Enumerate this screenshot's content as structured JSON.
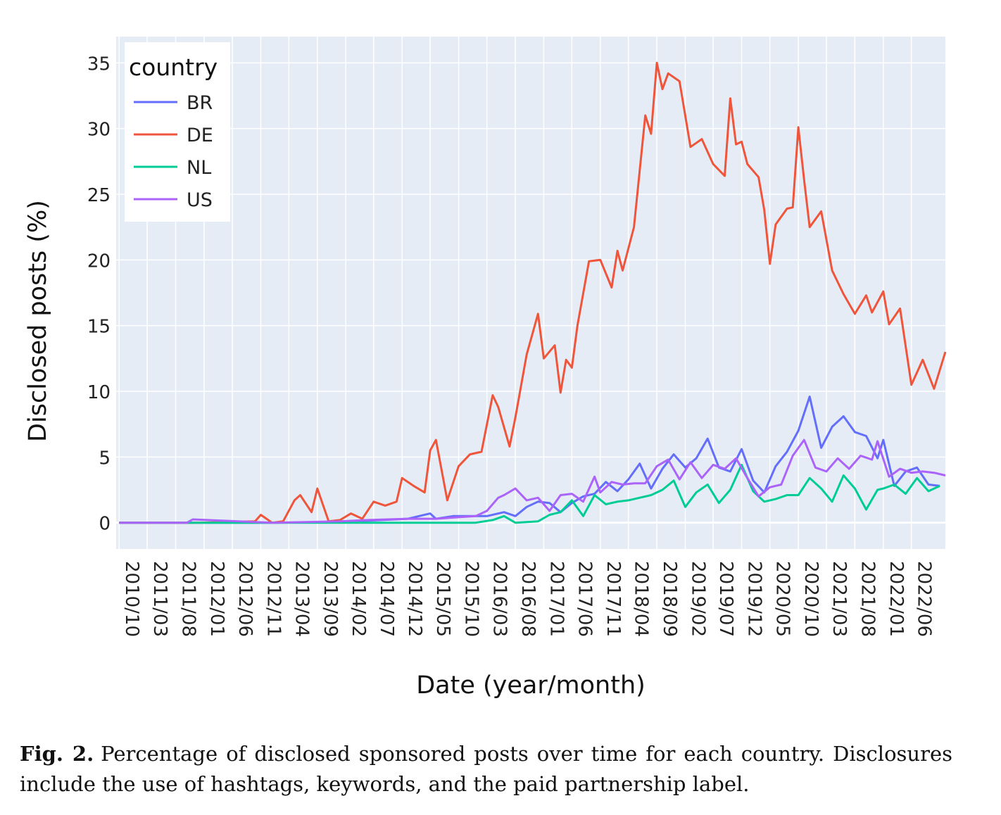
{
  "chart_data": {
    "type": "line",
    "xlabel": "Date (year/month)",
    "ylabel": "Disclosed posts (%)",
    "ylim": [
      -2,
      37
    ],
    "yticks": [
      0,
      5,
      10,
      15,
      20,
      25,
      30,
      35
    ],
    "xlim": [
      "2010-09-15",
      "2022-12-01"
    ],
    "xticks": [
      "2010/10",
      "2011/03",
      "2011/08",
      "2012/01",
      "2012/06",
      "2012/11",
      "2013/04",
      "2013/09",
      "2014/02",
      "2014/07",
      "2014/12",
      "2015/05",
      "2015/10",
      "2016/03",
      "2016/08",
      "2017/01",
      "2017/06",
      "2017/11",
      "2018/04",
      "2018/09",
      "2019/02",
      "2019/07",
      "2019/12",
      "2020/05",
      "2020/10",
      "2021/03",
      "2021/08",
      "2022/01",
      "2022/06"
    ],
    "grid": true,
    "legend": {
      "title": "country",
      "position": "top-left"
    },
    "colors": {
      "plot_bg": "#e5ecf6",
      "grid": "#ffffff",
      "BR": "#636efa",
      "DE": "#ef553b",
      "NL": "#00cc96",
      "US": "#ab63fa"
    },
    "series": [
      {
        "name": "BR",
        "x": [
          "2010-10",
          "2012-01",
          "2013-01",
          "2014-01",
          "2015-01",
          "2015-05",
          "2015-06",
          "2015-09",
          "2016-01",
          "2016-03",
          "2016-06",
          "2016-08",
          "2016-10",
          "2016-12",
          "2017-02",
          "2017-04",
          "2017-06",
          "2017-08",
          "2017-10",
          "2017-12",
          "2018-02",
          "2018-04",
          "2018-06",
          "2018-08",
          "2018-10",
          "2018-12",
          "2019-02",
          "2019-04",
          "2019-06",
          "2019-08",
          "2019-10",
          "2019-12",
          "2020-02",
          "2020-04",
          "2020-06",
          "2020-08",
          "2020-10",
          "2020-12",
          "2021-02",
          "2021-04",
          "2021-06",
          "2021-08",
          "2021-10",
          "2021-12",
          "2022-01",
          "2022-03",
          "2022-05",
          "2022-07",
          "2022-09",
          "2022-11"
        ],
        "y": [
          0,
          0,
          0,
          0.05,
          0.3,
          0.7,
          0.3,
          0.5,
          0.5,
          0.5,
          0.8,
          0.5,
          1.2,
          1.6,
          1.5,
          0.8,
          1.5,
          2.0,
          2.2,
          3.1,
          2.4,
          3.3,
          4.5,
          2.6,
          4.1,
          5.2,
          4.2,
          4.9,
          6.4,
          4.2,
          3.9,
          5.6,
          3.2,
          2.3,
          4.3,
          5.4,
          7.0,
          9.6,
          5.7,
          7.3,
          8.1,
          6.9,
          6.6,
          4.9,
          6.3,
          2.8,
          3.9,
          4.2,
          2.9,
          2.8
        ]
      },
      {
        "name": "DE",
        "x": [
          "2010-10",
          "2011-12",
          "2012-10",
          "2012-11",
          "2013-01",
          "2013-03",
          "2013-05",
          "2013-06",
          "2013-08",
          "2013-09",
          "2013-11",
          "2014-01",
          "2014-03",
          "2014-05",
          "2014-07",
          "2014-09",
          "2014-11",
          "2014-12",
          "2015-02",
          "2015-04",
          "2015-05",
          "2015-06",
          "2015-08",
          "2015-10",
          "2015-12",
          "2016-02",
          "2016-04",
          "2016-05",
          "2016-07",
          "2016-08",
          "2016-10",
          "2016-12",
          "2017-01",
          "2017-03",
          "2017-04",
          "2017-05",
          "2017-06",
          "2017-07",
          "2017-09",
          "2017-11",
          "2018-01",
          "2018-02",
          "2018-03",
          "2018-05",
          "2018-07",
          "2018-08",
          "2018-09",
          "2018-10",
          "2018-11",
          "2019-01",
          "2019-03",
          "2019-05",
          "2019-07",
          "2019-09",
          "2019-10",
          "2019-11",
          "2019-12",
          "2020-01",
          "2020-03",
          "2020-04",
          "2020-05",
          "2020-06",
          "2020-08",
          "2020-09",
          "2020-10",
          "2020-11",
          "2020-12",
          "2021-02",
          "2021-04",
          "2021-06",
          "2021-08",
          "2021-10",
          "2021-11",
          "2022-01",
          "2022-02",
          "2022-04",
          "2022-06",
          "2022-08",
          "2022-10",
          "2022-12"
        ],
        "y": [
          0,
          0,
          0.1,
          0.6,
          0,
          0.1,
          1.7,
          2.1,
          0.8,
          2.6,
          0.1,
          0.2,
          0.7,
          0.3,
          1.6,
          1.3,
          1.6,
          3.4,
          2.8,
          2.3,
          5.5,
          6.3,
          1.7,
          4.3,
          5.2,
          5.4,
          9.7,
          8.8,
          5.8,
          8.0,
          12.8,
          15.9,
          12.5,
          13.5,
          9.9,
          12.4,
          11.8,
          15.0,
          19.9,
          20.0,
          17.9,
          20.7,
          19.2,
          22.5,
          31.0,
          29.6,
          35.0,
          33.0,
          34.2,
          33.6,
          28.6,
          29.2,
          27.3,
          26.4,
          32.3,
          28.8,
          29.0,
          27.3,
          26.3,
          23.8,
          19.7,
          22.7,
          23.9,
          24.0,
          30.1,
          26.1,
          22.5,
          23.7,
          19.2,
          17.4,
          15.9,
          17.3,
          16.0,
          17.6,
          15.1,
          16.3,
          10.5,
          12.4,
          10.2,
          13.0
        ]
      },
      {
        "name": "NL",
        "x": [
          "2010-10",
          "2014-01",
          "2015-01",
          "2015-06",
          "2016-01",
          "2016-04",
          "2016-06",
          "2016-08",
          "2016-12",
          "2017-02",
          "2017-04",
          "2017-06",
          "2017-08",
          "2017-10",
          "2017-12",
          "2018-02",
          "2018-04",
          "2018-06",
          "2018-08",
          "2018-10",
          "2018-12",
          "2019-02",
          "2019-04",
          "2019-06",
          "2019-08",
          "2019-10",
          "2019-12",
          "2020-02",
          "2020-04",
          "2020-06",
          "2020-08",
          "2020-10",
          "2020-12",
          "2021-02",
          "2021-04",
          "2021-06",
          "2021-08",
          "2021-10",
          "2021-12",
          "2022-01",
          "2022-03",
          "2022-05",
          "2022-07",
          "2022-09",
          "2022-11"
        ],
        "y": [
          0,
          0,
          0,
          0,
          0,
          0.2,
          0.5,
          0,
          0.1,
          0.6,
          0.8,
          1.7,
          0.5,
          2.1,
          1.4,
          1.6,
          1.7,
          1.9,
          2.1,
          2.5,
          3.2,
          1.2,
          2.3,
          2.9,
          1.5,
          2.5,
          4.4,
          2.4,
          1.6,
          1.8,
          2.1,
          2.1,
          3.4,
          2.6,
          1.6,
          3.6,
          2.6,
          1.0,
          2.5,
          2.6,
          2.9,
          2.2,
          3.4,
          2.4,
          2.8
        ]
      },
      {
        "name": "US",
        "x": [
          "2010-10",
          "2011-10",
          "2011-11",
          "2012-10",
          "2013-01",
          "2014-01",
          "2014-06",
          "2015-01",
          "2015-06",
          "2016-01",
          "2016-03",
          "2016-05",
          "2016-06",
          "2016-08",
          "2016-10",
          "2016-12",
          "2017-02",
          "2017-04",
          "2017-06",
          "2017-08",
          "2017-10",
          "2017-11",
          "2018-01",
          "2018-03",
          "2018-05",
          "2018-07",
          "2018-09",
          "2018-11",
          "2019-01",
          "2019-03",
          "2019-05",
          "2019-07",
          "2019-09",
          "2019-11",
          "2020-01",
          "2020-03",
          "2020-05",
          "2020-07",
          "2020-09",
          "2020-11",
          "2021-01",
          "2021-03",
          "2021-05",
          "2021-07",
          "2021-09",
          "2021-11",
          "2021-12",
          "2022-02",
          "2022-04",
          "2022-06",
          "2022-08",
          "2022-10",
          "2022-12"
        ],
        "y": [
          0,
          0,
          0.25,
          0.05,
          0,
          0.1,
          0.2,
          0.3,
          0.3,
          0.5,
          0.9,
          1.9,
          2.1,
          2.6,
          1.7,
          1.9,
          0.9,
          2.1,
          2.2,
          1.6,
          3.5,
          2.3,
          3.1,
          2.9,
          3.0,
          3.0,
          4.3,
          4.8,
          3.3,
          4.6,
          3.4,
          4.4,
          4.1,
          4.9,
          3.4,
          2.0,
          2.7,
          2.9,
          5.1,
          6.3,
          4.2,
          3.9,
          4.9,
          4.1,
          5.1,
          4.8,
          6.2,
          3.5,
          4.1,
          3.8,
          3.9,
          3.8,
          3.6
        ]
      }
    ]
  },
  "caption": {
    "label": "Fig. 2.",
    "text": "Percentage of disclosed sponsored posts over time for each country. Disclosures include the use of hashtags, keywords, and the paid partnership label."
  }
}
